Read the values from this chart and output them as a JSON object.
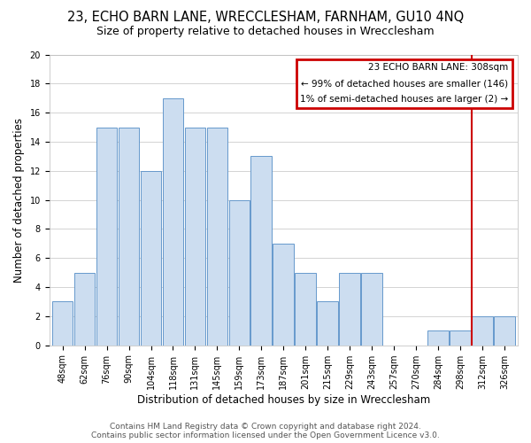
{
  "title": "23, ECHO BARN LANE, WRECCLESHAM, FARNHAM, GU10 4NQ",
  "subtitle": "Size of property relative to detached houses in Wrecclesham",
  "xlabel": "Distribution of detached houses by size in Wrecclesham",
  "ylabel": "Number of detached properties",
  "bar_labels": [
    "48sqm",
    "62sqm",
    "76sqm",
    "90sqm",
    "104sqm",
    "118sqm",
    "131sqm",
    "145sqm",
    "159sqm",
    "173sqm",
    "187sqm",
    "201sqm",
    "215sqm",
    "229sqm",
    "243sqm",
    "257sqm",
    "270sqm",
    "284sqm",
    "298sqm",
    "312sqm",
    "326sqm"
  ],
  "bar_heights": [
    3,
    5,
    15,
    15,
    12,
    17,
    15,
    15,
    10,
    13,
    7,
    5,
    3,
    5,
    5,
    0,
    0,
    1,
    1,
    2,
    2
  ],
  "bar_color": "#ccddf0",
  "bar_edge_color": "#6699cc",
  "grid_color": "#cccccc",
  "ylim": [
    0,
    20
  ],
  "yticks": [
    0,
    2,
    4,
    6,
    8,
    10,
    12,
    14,
    16,
    18,
    20
  ],
  "vline_color": "#cc0000",
  "annotation_title": "23 ECHO BARN LANE: 308sqm",
  "annotation_line1": "← 99% of detached houses are smaller (146)",
  "annotation_line2": "1% of semi-detached houses are larger (2) →",
  "annotation_box_color": "#cc0000",
  "footer_line1": "Contains HM Land Registry data © Crown copyright and database right 2024.",
  "footer_line2": "Contains public sector information licensed under the Open Government Licence v3.0.",
  "background_color": "#ffffff",
  "title_fontsize": 10.5,
  "subtitle_fontsize": 9,
  "xlabel_fontsize": 8.5,
  "ylabel_fontsize": 8.5,
  "tick_fontsize": 7,
  "footer_fontsize": 6.5
}
